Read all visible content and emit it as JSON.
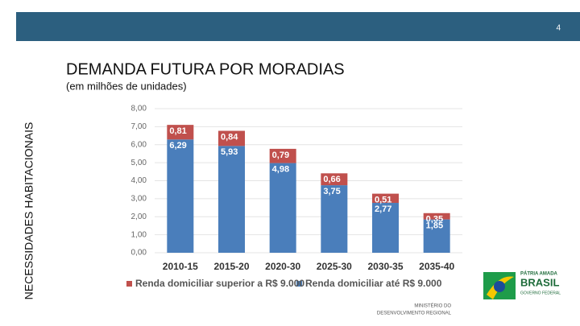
{
  "page_number": "4",
  "side_label": "NECESSIDADES HABITACIONAIS",
  "footer": {
    "ministry_line1": "MINISTÉRIO DO",
    "ministry_line2": "DESENVOLVIMENTO REGIONAL",
    "brand_line1": "PÁTRIA AMADA",
    "brand_line2": "BRASIL",
    "brand_line3": "GOVERNO FEDERAL"
  },
  "chart_data": {
    "type": "stacked_bar",
    "title": "DEMANDA FUTURA POR MORADIAS",
    "subtitle": "(em milhões de unidades)",
    "categories": [
      "2010-15",
      "2015-20",
      "2020-30",
      "2025-30",
      "2030-35",
      "2035-40"
    ],
    "series": [
      {
        "name": "Renda domiciliar até R$ 9.000",
        "color": "#4a7ebb",
        "values": [
          6.29,
          5.93,
          4.98,
          3.75,
          2.77,
          1.85
        ],
        "value_labels": [
          "6,29",
          "5,93",
          "4,98",
          "3,75",
          "2,77",
          "1,85"
        ]
      },
      {
        "name": "Renda domiciliar superior a R$ 9.000",
        "color": "#c0504d",
        "values": [
          0.81,
          0.84,
          0.79,
          0.66,
          0.51,
          0.35
        ],
        "value_labels": [
          "0,81",
          "0,84",
          "0,79",
          "0,66",
          "0,51",
          "0,35"
        ]
      }
    ],
    "ylim": [
      0,
      8
    ],
    "yticks": [
      {
        "value": 0,
        "label": "0,00"
      },
      {
        "value": 1,
        "label": "1,00"
      },
      {
        "value": 2,
        "label": "2,00"
      },
      {
        "value": 3,
        "label": "3,00"
      },
      {
        "value": 4,
        "label": "4,00"
      },
      {
        "value": 5,
        "label": "5,00"
      },
      {
        "value": 6,
        "label": "6,00"
      },
      {
        "value": 7,
        "label": "7,00"
      },
      {
        "value": 8,
        "label": "8,00"
      }
    ],
    "grid": true
  }
}
